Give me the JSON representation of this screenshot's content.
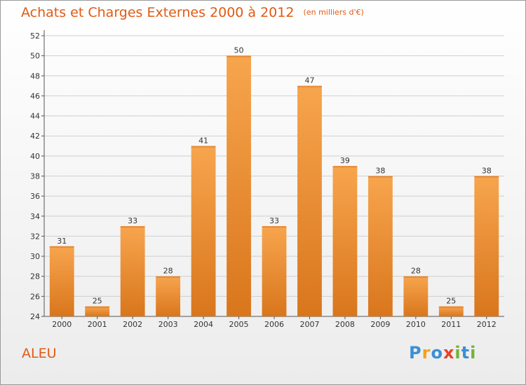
{
  "title": "Achats et Charges Externes 2000 à 2012",
  "unit_note": "(en milliers d'€)",
  "commune": "ALEU",
  "logo": {
    "parts": [
      {
        "text": "P",
        "color": "#3b8fd6"
      },
      {
        "text": "r",
        "color": "#f2a21c"
      },
      {
        "text": "o",
        "color": "#3b8fd6"
      },
      {
        "text": "x",
        "color": "#e8412a"
      },
      {
        "text": "i",
        "color": "#72b433"
      },
      {
        "text": "t",
        "color": "#3b8fd6"
      },
      {
        "text": "i",
        "color": "#72b433"
      }
    ]
  },
  "colors": {
    "accent": "#e05a14",
    "bar_light": "#f7a54e",
    "bar_dark": "#d9761c",
    "grid": "#cfcfcf"
  },
  "chart_data": {
    "type": "bar",
    "title": "Achats et Charges Externes 2000 à 2012",
    "subtitle": "(en milliers d'€)",
    "categories": [
      "2000",
      "2001",
      "2002",
      "2003",
      "2004",
      "2005",
      "2006",
      "2007",
      "2008",
      "2009",
      "2010",
      "2011",
      "2012"
    ],
    "values": [
      31,
      25,
      33,
      28,
      41,
      50,
      33,
      47,
      39,
      38,
      28,
      25,
      38
    ],
    "ylim": [
      24,
      52
    ],
    "yticks": [
      24,
      26,
      28,
      30,
      32,
      34,
      36,
      38,
      40,
      42,
      44,
      46,
      48,
      50,
      52
    ],
    "grid": true,
    "data_labels": true
  }
}
